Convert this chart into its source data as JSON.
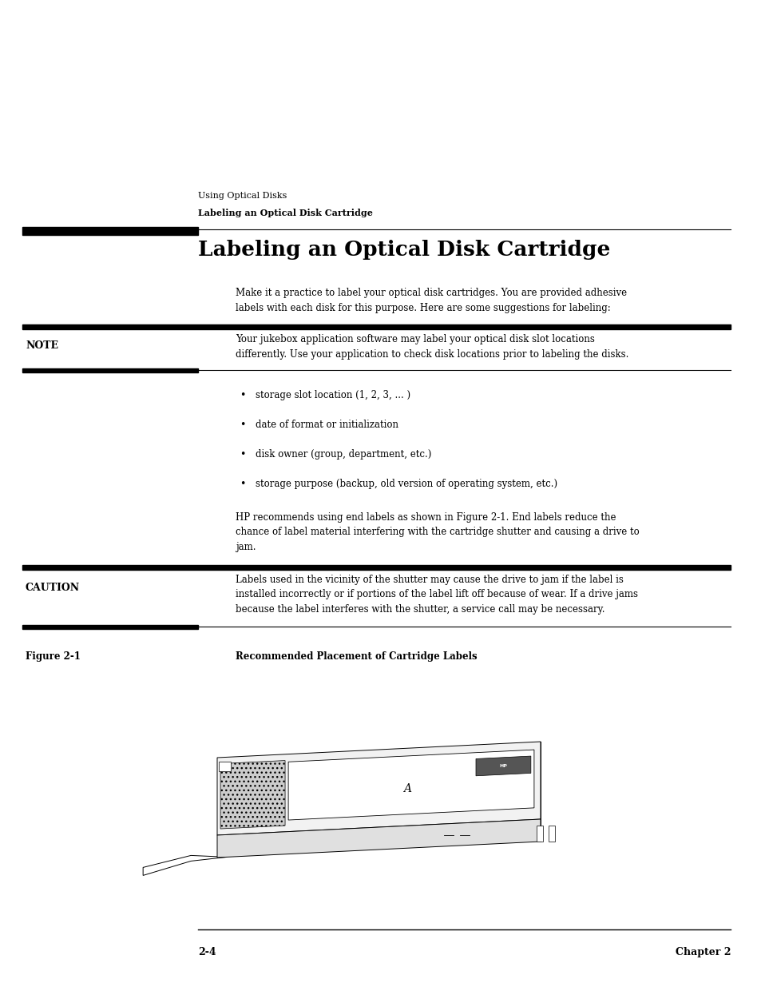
{
  "bg_color": "#ffffff",
  "page_width": 9.54,
  "page_height": 12.35,
  "header_line1": "Using Optical Disks",
  "header_line2": "Labeling an Optical Disk Cartridge",
  "section_title": "Labeling an Optical Disk Cartridge",
  "intro_text": "Make it a practice to label your optical disk cartridges. You are provided adhesive\nlabels with each disk for this purpose. Here are some suggestions for labeling:",
  "note_label": "NOTE",
  "note_text": "Your jukebox application software may label your optical disk slot locations\ndifferently. Use your application to check disk locations prior to labeling the disks.",
  "bullet_items": [
    "storage slot location (1, 2, 3, ... )",
    "date of format or initialization",
    "disk owner (group, department, etc.)",
    "storage purpose (backup, old version of operating system, etc.)"
  ],
  "body_text2": "HP recommends using end labels as shown in Figure 2-1. End labels reduce the\nchance of label material interfering with the cartridge shutter and causing a drive to\njam.",
  "caution_label": "CAUTION",
  "caution_text": "Labels used in the vicinity of the shutter may cause the drive to jam if the label is\ninstalled incorrectly or if portions of the label lift off because of wear. If a drive jams\nbecause the label interferes with the shutter, a service call may be necessary.",
  "figure_label": "Figure 2-1",
  "figure_caption": "Recommended Placement of Cartridge Labels",
  "footer_left": "2-4",
  "footer_right": "Chapter 2"
}
